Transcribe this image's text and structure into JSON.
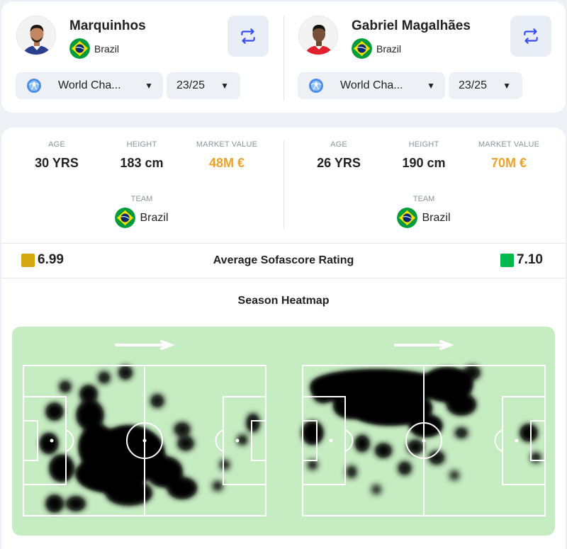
{
  "players": [
    {
      "name": "Marquinhos",
      "country": "Brazil",
      "competition": "World Cha...",
      "season": "23/25",
      "age_label": "AGE",
      "age": "30 YRS",
      "height_label": "HEIGHT",
      "height": "183 cm",
      "market_value_label": "MARKET VALUE",
      "market_value": "48M €",
      "team_label": "TEAM",
      "team": "Brazil",
      "rating": "6.99",
      "rating_color": "#d4a60f"
    },
    {
      "name": "Gabriel Magalhães",
      "country": "Brazil",
      "competition": "World Cha...",
      "season": "23/25",
      "age_label": "AGE",
      "age": "26 YRS",
      "height_label": "HEIGHT",
      "height": "190 cm",
      "market_value_label": "MARKET VALUE",
      "market_value": "70M €",
      "team_label": "TEAM",
      "team": "Brazil",
      "rating": "7.10",
      "rating_color": "#00b84b"
    }
  ],
  "rating_title": "Average Sofascore Rating",
  "heatmap_title": "Season Heatmap",
  "colors": {
    "accent": "#374df5",
    "market_value": "#e8a32a",
    "pitch": "#c6ecc2",
    "heat_hot": "#ff2a1e",
    "heat_warm": "#ffd42a"
  },
  "icons": {
    "swap": "swap-arrows-icon",
    "competition": "world-cup-ball-icon",
    "dropdown": "caret-down-icon",
    "flag": "brazil-flag-icon",
    "direction": "attack-direction-arrow-icon"
  }
}
